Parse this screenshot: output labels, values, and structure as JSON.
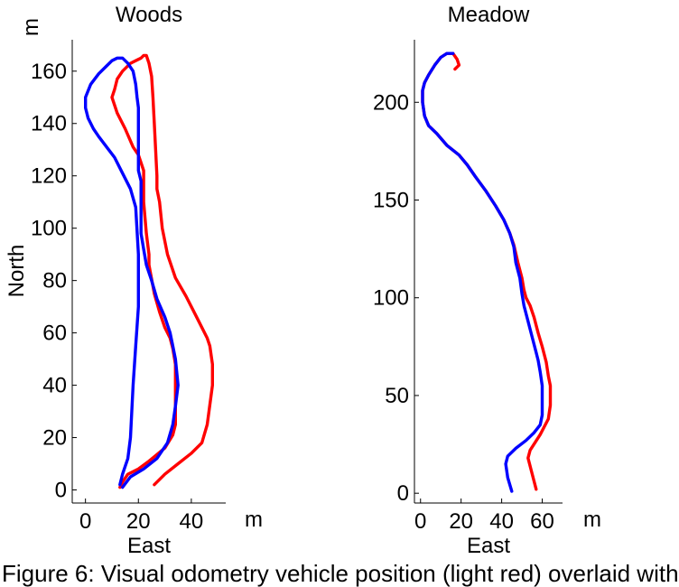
{
  "caption": "Figure 6: Visual odometry vehicle position (light red) overlaid with",
  "chart_data": [
    {
      "type": "line",
      "title": "Woods",
      "xlabel": "East",
      "ylabel": "North",
      "x_unit": "m",
      "y_unit": "m",
      "xlim": [
        -5,
        53
      ],
      "ylim": [
        -5,
        172
      ],
      "x_ticks": [
        0,
        20,
        40
      ],
      "y_ticks": [
        0,
        20,
        40,
        60,
        80,
        100,
        120,
        140,
        160
      ],
      "x_tick_labels": [
        "0",
        "20",
        "40"
      ],
      "y_tick_labels": [
        "0",
        "20",
        "40",
        "60",
        "80",
        "100",
        "120",
        "140",
        "160"
      ],
      "series": [
        {
          "color": "#ff0000",
          "x": [
            26,
            30,
            35,
            40,
            44,
            46,
            48,
            48,
            47,
            46,
            42,
            38,
            34,
            31,
            29,
            28,
            27,
            27,
            26,
            25.5,
            25,
            24,
            23,
            22,
            21,
            19,
            17,
            14,
            12,
            11,
            10,
            12,
            15,
            18,
            20,
            21,
            22,
            22,
            23,
            24,
            24,
            26,
            28,
            30,
            32,
            33,
            34,
            34,
            34,
            34,
            33,
            30,
            24,
            20,
            16,
            14,
            13
          ],
          "y": [
            2,
            6,
            10,
            14,
            18,
            25,
            40,
            48,
            55,
            58,
            66,
            74,
            81,
            90,
            100,
            110,
            115,
            120,
            140,
            150,
            158,
            163,
            166,
            166,
            165,
            164,
            163,
            160,
            157,
            153,
            150,
            144,
            138,
            131,
            128,
            125,
            122,
            110,
            98,
            90,
            86,
            75,
            68,
            62,
            58,
            54,
            48,
            40,
            32,
            25,
            21,
            16,
            11,
            8,
            6,
            3,
            1
          ]
        },
        {
          "color": "#0000ff",
          "x": [
            14,
            17,
            22,
            27,
            31,
            33,
            34,
            35,
            34,
            33,
            32,
            30,
            27,
            25,
            23,
            22,
            21,
            21,
            21,
            21,
            20,
            20,
            20,
            20,
            19.5,
            19,
            18,
            16,
            14,
            12,
            10,
            8,
            5,
            2,
            0,
            0,
            1,
            3,
            5,
            8,
            11,
            14,
            17,
            19,
            20,
            20,
            19,
            18,
            17,
            16,
            14,
            13
          ],
          "y": [
            1,
            5,
            8,
            12,
            18,
            25,
            32,
            40,
            50,
            55,
            60,
            66,
            73,
            80,
            86,
            92,
            98,
            104,
            110,
            118,
            122,
            130,
            140,
            146,
            150,
            155,
            160,
            163,
            165,
            165,
            164,
            162,
            159,
            155,
            150,
            146,
            142,
            138,
            135,
            131,
            127,
            121,
            115,
            108,
            90,
            70,
            55,
            40,
            20,
            12,
            6,
            2
          ]
        }
      ]
    },
    {
      "type": "line",
      "title": "Meadow",
      "xlabel": "East",
      "ylabel": "",
      "x_unit": "m",
      "y_unit": "",
      "xlim": [
        -3,
        70
      ],
      "ylim": [
        -5,
        232
      ],
      "x_ticks": [
        0,
        20,
        40,
        60
      ],
      "y_ticks": [
        0,
        50,
        100,
        150,
        200
      ],
      "x_tick_labels": [
        "0",
        "20",
        "40",
        "60"
      ],
      "y_tick_labels": [
        "0",
        "50",
        "100",
        "150",
        "200"
      ],
      "series": [
        {
          "color": "#ff0000",
          "x": [
            57,
            55,
            53,
            54,
            59,
            63,
            64,
            64,
            63,
            62,
            60,
            58,
            56,
            54,
            52,
            51,
            50,
            48,
            46,
            44,
            41,
            37,
            32,
            27,
            23,
            19,
            13,
            8,
            4,
            2,
            1,
            1,
            2,
            4,
            7,
            10,
            13,
            16,
            18,
            19,
            17
          ],
          "y": [
            2,
            10,
            18,
            22,
            30,
            38,
            45,
            55,
            60,
            67,
            75,
            82,
            90,
            96,
            100,
            104,
            110,
            118,
            127,
            133,
            140,
            147,
            155,
            162,
            168,
            173,
            178,
            184,
            188,
            193,
            200,
            206,
            210,
            214,
            219,
            223,
            225,
            225,
            222,
            219,
            217
          ]
        },
        {
          "color": "#0000ff",
          "x": [
            45,
            43,
            42,
            43,
            47,
            52,
            56,
            59,
            60,
            60,
            59,
            58,
            57,
            55,
            53,
            51,
            50,
            49,
            47,
            46,
            44,
            41,
            37,
            32,
            27,
            23,
            19,
            13,
            8,
            4,
            2,
            1,
            1,
            2,
            4,
            7,
            10,
            13,
            16
          ],
          "y": [
            1,
            8,
            15,
            19,
            23,
            27,
            31,
            35,
            40,
            55,
            62,
            68,
            72,
            80,
            88,
            96,
            102,
            110,
            118,
            126,
            133,
            140,
            147,
            155,
            162,
            168,
            173,
            178,
            184,
            188,
            193,
            200,
            206,
            210,
            214,
            219,
            223,
            225,
            225
          ]
        }
      ]
    }
  ]
}
